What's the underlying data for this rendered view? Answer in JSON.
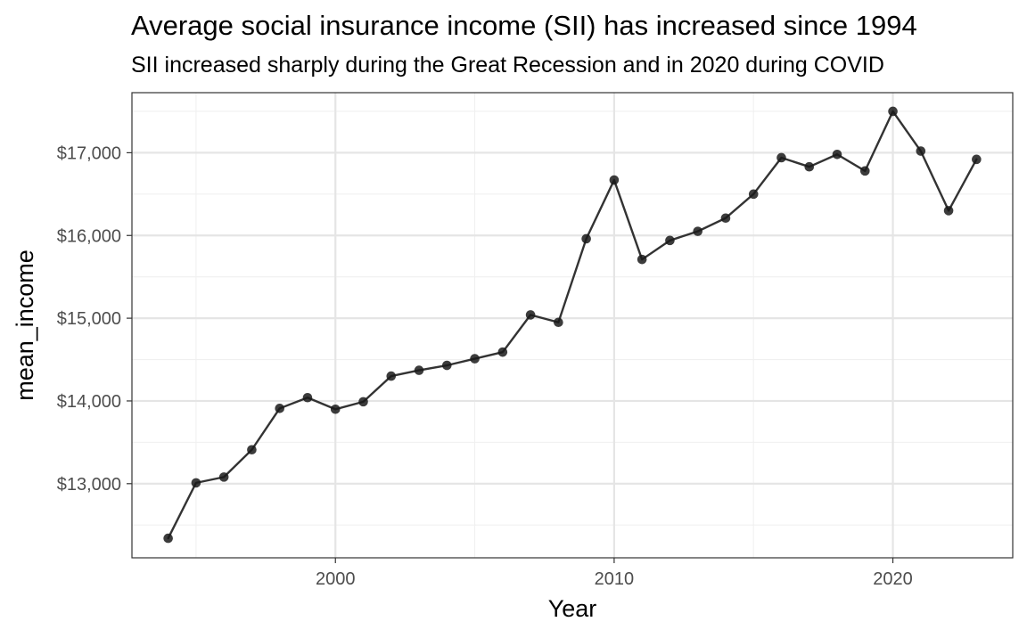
{
  "chart_data": {
    "type": "line",
    "title": "Average social insurance income (SII) has increased since 1994",
    "subtitle": "SII increased sharply during the Great Recession and in 2020 during COVID",
    "xlabel": "Year",
    "ylabel": "mean_income",
    "xlim": [
      1992.7,
      2024.3
    ],
    "ylim": [
      12104,
      17726
    ],
    "x_ticks": [
      2000,
      2010,
      2020
    ],
    "x_tick_labels": [
      "2000",
      "2010",
      "2020"
    ],
    "y_ticks": [
      13000,
      14000,
      15000,
      16000,
      17000
    ],
    "y_tick_labels": [
      "$13,000",
      "$14,000",
      "$15,000",
      "$16,000",
      "$17,000"
    ],
    "grid": true,
    "series": [
      {
        "x": [
          1994,
          1995,
          1996,
          1997,
          1998,
          1999,
          2000,
          2001,
          2002,
          2003,
          2004,
          2005,
          2006,
          2007,
          2008,
          2009,
          2010,
          2011,
          2012,
          2013,
          2014,
          2015,
          2016,
          2017,
          2018,
          2019,
          2020,
          2021,
          2022,
          2023
        ],
        "y": [
          12340,
          13010,
          13080,
          13410,
          13910,
          14040,
          13900,
          13990,
          14300,
          14370,
          14430,
          14510,
          14590,
          15040,
          14950,
          15960,
          16670,
          15710,
          15940,
          16050,
          16210,
          16500,
          16940,
          16830,
          16980,
          16780,
          17500,
          17020,
          16300,
          16920
        ]
      }
    ],
    "colors": {
      "line": "#333333",
      "point": "#1a1a1a",
      "grid_major": "#e5e5e5",
      "grid_minor": "#f0f0f0",
      "panel_border": "#333333",
      "tick_text": "#4d4d4d",
      "title_text": "#000000"
    }
  }
}
